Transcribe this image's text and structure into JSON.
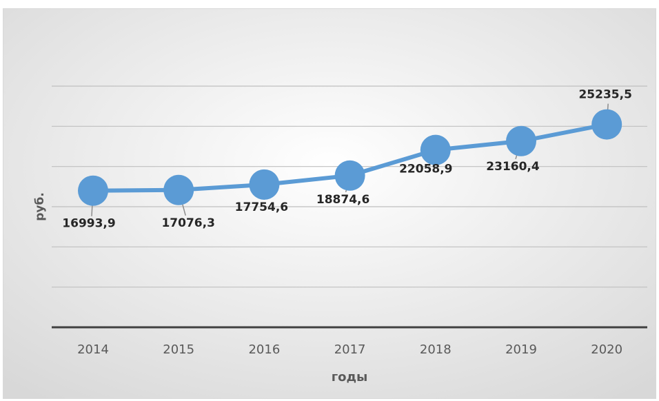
{
  "chart_data": {
    "type": "line",
    "title": "",
    "xlabel": "годы",
    "ylabel": "руб.",
    "categories": [
      "2014",
      "2015",
      "2016",
      "2017",
      "2018",
      "2019",
      "2020"
    ],
    "values": [
      16993.9,
      17076.3,
      17754.6,
      18874.6,
      22058.9,
      23160.4,
      25235.5
    ],
    "value_labels": [
      "16993,9",
      "17076,3",
      "17754,6",
      "18874,6",
      "22058,9",
      "23160,4",
      "25235,5"
    ],
    "ylim": [
      0,
      30000
    ],
    "grid": true,
    "legend": "none",
    "colors": {
      "series": "#5b9bd5",
      "grid": "#bfbfbf",
      "axis": "#404040",
      "tick_text": "#595959",
      "label_text": "#262626",
      "leader": "#8c8c8c"
    }
  }
}
